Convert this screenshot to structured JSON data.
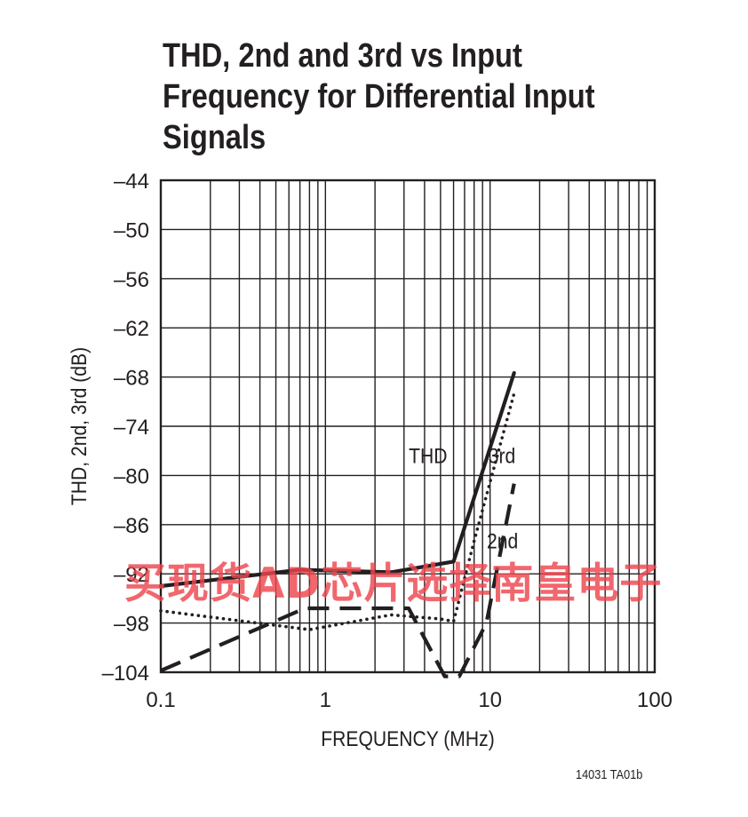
{
  "title_lines": [
    "THD, 2nd and 3rd vs Input",
    "Frequency for Differential Input",
    "Signals"
  ],
  "figure_code": "14031 TA01b",
  "watermark": "买现货AD芯片选择南皇电子",
  "colors": {
    "ink": "#231f20",
    "watermark": "#ee464e"
  },
  "chart_data": {
    "type": "line",
    "title": "THD, 2nd and 3rd vs Input Frequency for Differential Input Signals",
    "xlabel": "FREQUENCY (MHz)",
    "ylabel": "THD, 2nd, 3rd (dB)",
    "xscale": "log",
    "xlim": [
      0.1,
      100
    ],
    "ylim": [
      -104,
      -44
    ],
    "xticks": [
      0.1,
      1,
      10,
      100
    ],
    "xtick_labels": [
      "0.1",
      "1",
      "10",
      "100"
    ],
    "yticks": [
      -44,
      -50,
      -56,
      -62,
      -68,
      -74,
      -80,
      -86,
      -92,
      -98,
      -104
    ],
    "ytick_labels": [
      "–44",
      "–50",
      "–56",
      "–62",
      "–68",
      "–74",
      "–80",
      "–86",
      "–92",
      "–98",
      "–104"
    ],
    "grid": true,
    "series": [
      {
        "name": "THD",
        "style": "solid",
        "x": [
          0.1,
          0.7,
          2.5,
          6,
          14
        ],
        "y": [
          -93.5,
          -91.5,
          -91.8,
          -90.5,
          -67.5
        ]
      },
      {
        "name": "3rd",
        "style": "dotted",
        "x": [
          0.1,
          0.8,
          2.5,
          5,
          6,
          8,
          14
        ],
        "y": [
          -96.5,
          -98.8,
          -97,
          -97.5,
          -97.8,
          -88,
          -70
        ]
      },
      {
        "name": "2nd",
        "style": "dashed",
        "x": [
          0.1,
          0.75,
          3.2,
          5.3,
          6.5,
          9.5,
          14
        ],
        "y": [
          -103.8,
          -96.2,
          -96.2,
          -104.5,
          -104.5,
          -98,
          -81
        ]
      }
    ],
    "annotations": [
      {
        "text": "THD",
        "x": 4.2,
        "y": -78.5
      },
      {
        "text": "3rd",
        "x": 11.8,
        "y": -78.5
      },
      {
        "text": "2nd",
        "x": 11.9,
        "y": -88.9
      }
    ]
  }
}
